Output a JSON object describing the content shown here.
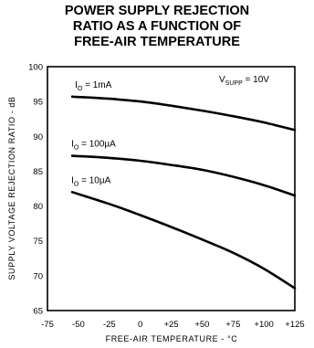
{
  "chart_data": {
    "type": "line",
    "title": [
      "POWER SUPPLY REJECTION",
      "RATIO AS A FUNCTION OF",
      "FREE-AIR TEMPERATURE"
    ],
    "xlabel": "FREE-AIR TEMPERATURE - °C",
    "ylabel": "SUPPLY VOLTAGE REJECTION RATIO - dB",
    "xlim": [
      -75,
      125
    ],
    "ylim": [
      65,
      100
    ],
    "x_ticks": [
      "-75",
      "-50",
      "-25",
      "0",
      "+25",
      "+50",
      "+75",
      "+100",
      "+125"
    ],
    "y_ticks": [
      "65",
      "70",
      "75",
      "80",
      "85",
      "90",
      "95",
      "100"
    ],
    "condition": {
      "main": "V",
      "sub": "SUPP",
      "tail": " = 10V"
    },
    "grid": false,
    "series": [
      {
        "name_main": "I",
        "name_sub": "O",
        "name_tail": " = 1mA",
        "x": [
          -55,
          -25,
          0,
          25,
          50,
          75,
          100,
          125
        ],
        "y": [
          95.7,
          95.4,
          95.0,
          94.4,
          93.7,
          92.9,
          92.0,
          90.9
        ]
      },
      {
        "name_main": "I",
        "name_sub": "O",
        "name_tail": " = 100µA",
        "x": [
          -55,
          -25,
          0,
          25,
          50,
          75,
          100,
          125
        ],
        "y": [
          87.2,
          86.9,
          86.5,
          85.9,
          85.2,
          84.2,
          83.0,
          81.5
        ]
      },
      {
        "name_main": "I",
        "name_sub": "O",
        "name_tail": " = 10µA",
        "x": [
          -55,
          -25,
          0,
          25,
          50,
          75,
          100,
          125
        ],
        "y": [
          82.0,
          80.3,
          78.7,
          77.0,
          75.2,
          73.3,
          71.0,
          68.2
        ]
      }
    ]
  }
}
